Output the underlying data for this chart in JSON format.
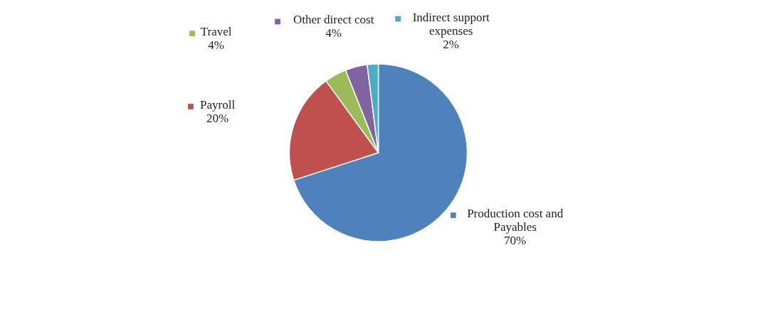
{
  "chart_data": {
    "type": "pie",
    "categories": [
      "Production cost and Payables",
      "Payroll",
      "Travel",
      "Other direct cost",
      "Indirect support expenses"
    ],
    "values": [
      70,
      20,
      4,
      4,
      2
    ],
    "colors": [
      "#4f81bd",
      "#c0504d",
      "#9bbb59",
      "#8064a2",
      "#4bacc6"
    ],
    "value_labels": [
      "70%",
      "20%",
      "4%",
      "4%",
      "2%"
    ],
    "legend": "top"
  }
}
